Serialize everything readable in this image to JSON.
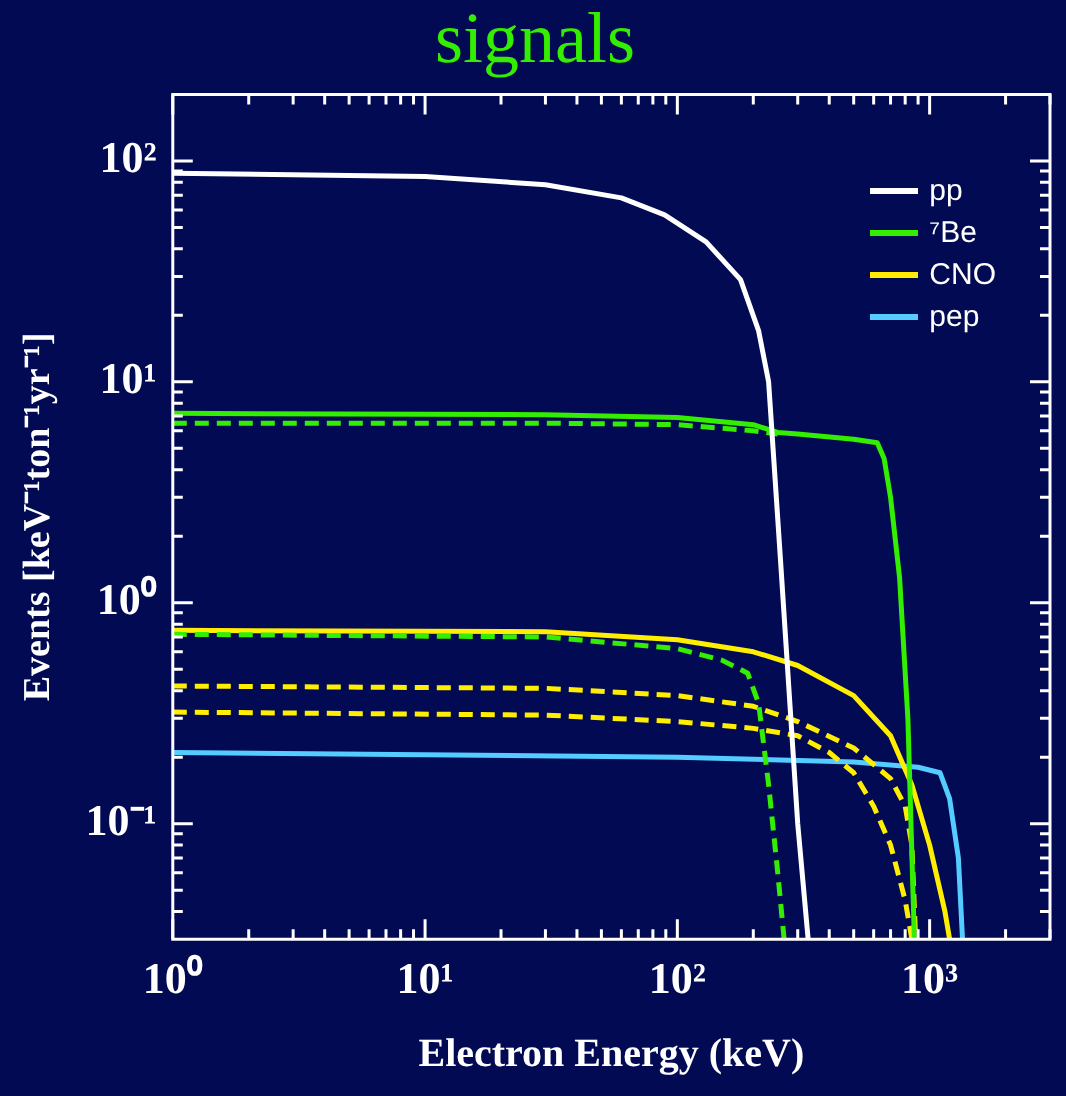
{
  "chart_data": {
    "type": "line",
    "title": "signals",
    "xlabel": "Electron Energy (keV)",
    "ylabel": "Events [keV⁻¹ton⁻¹yr⁻¹]",
    "log": "xy",
    "grid": false,
    "legend": "top right",
    "marker": "none",
    "line_style": "solid",
    "xlim": [
      1,
      3000
    ],
    "ylim": [
      0.03,
      200
    ],
    "xticks": [
      {
        "value": 1,
        "label": "10⁰"
      },
      {
        "value": 2,
        "label": null
      },
      {
        "value": 3,
        "label": null
      },
      {
        "value": 4,
        "label": null
      },
      {
        "value": 5,
        "label": null
      },
      {
        "value": 6,
        "label": null
      },
      {
        "value": 7,
        "label": null
      },
      {
        "value": 8,
        "label": null
      },
      {
        "value": 9,
        "label": null
      },
      {
        "value": 10,
        "label": "10¹"
      },
      {
        "value": 20,
        "label": null
      },
      {
        "value": 30,
        "label": null
      },
      {
        "value": 40,
        "label": null
      },
      {
        "value": 50,
        "label": null
      },
      {
        "value": 60,
        "label": null
      },
      {
        "value": 70,
        "label": null
      },
      {
        "value": 80,
        "label": null
      },
      {
        "value": 90,
        "label": null
      },
      {
        "value": 100,
        "label": "10²"
      },
      {
        "value": 200,
        "label": null
      },
      {
        "value": 300,
        "label": null
      },
      {
        "value": 400,
        "label": null
      },
      {
        "value": 500,
        "label": null
      },
      {
        "value": 600,
        "label": null
      },
      {
        "value": 700,
        "label": null
      },
      {
        "value": 800,
        "label": null
      },
      {
        "value": 900,
        "label": null
      },
      {
        "value": 1000,
        "label": "10³"
      },
      {
        "value": 2000,
        "label": null
      },
      {
        "value": 3000,
        "label": null
      }
    ],
    "yticks": [
      {
        "value": 0.04,
        "label": null
      },
      {
        "value": 0.05,
        "label": null
      },
      {
        "value": 0.06,
        "label": null
      },
      {
        "value": 0.07,
        "label": null
      },
      {
        "value": 0.08,
        "label": null
      },
      {
        "value": 0.09,
        "label": null
      },
      {
        "value": 0.1,
        "label": "10⁻¹"
      },
      {
        "value": 0.2,
        "label": null
      },
      {
        "value": 0.3,
        "label": null
      },
      {
        "value": 0.4,
        "label": null
      },
      {
        "value": 0.5,
        "label": null
      },
      {
        "value": 0.6,
        "label": null
      },
      {
        "value": 0.7,
        "label": null
      },
      {
        "value": 0.8,
        "label": null
      },
      {
        "value": 0.9,
        "label": null
      },
      {
        "value": 1,
        "label": "10⁰"
      },
      {
        "value": 2,
        "label": null
      },
      {
        "value": 3,
        "label": null
      },
      {
        "value": 4,
        "label": null
      },
      {
        "value": 5,
        "label": null
      },
      {
        "value": 6,
        "label": null
      },
      {
        "value": 7,
        "label": null
      },
      {
        "value": 8,
        "label": null
      },
      {
        "value": 9,
        "label": null
      },
      {
        "value": 10,
        "label": "10¹"
      },
      {
        "value": 20,
        "label": null
      },
      {
        "value": 30,
        "label": null
      },
      {
        "value": 40,
        "label": null
      },
      {
        "value": 50,
        "label": null
      },
      {
        "value": 60,
        "label": null
      },
      {
        "value": 70,
        "label": null
      },
      {
        "value": 80,
        "label": null
      },
      {
        "value": 90,
        "label": null
      },
      {
        "value": 100,
        "label": "10²"
      },
      {
        "value": 200,
        "label": null
      }
    ],
    "series": [
      {
        "name": "pp",
        "color": "#ffffff",
        "x": [
          1,
          10,
          30,
          60,
          89,
          130,
          178,
          210,
          230,
          256,
          300,
          330
        ],
        "values": [
          88,
          85,
          78,
          68,
          57,
          43,
          29,
          17,
          10,
          1.6,
          0.1,
          0.03
        ]
      },
      {
        "name": "⁷Be",
        "color": "#33ee00",
        "x": [
          1,
          30,
          100,
          200,
          250,
          300,
          500,
          620,
          660,
          700,
          760,
          820,
          870
        ],
        "values": [
          7.2,
          7.1,
          6.9,
          6.4,
          5.9,
          5.8,
          5.5,
          5.3,
          4.5,
          3,
          1.3,
          0.3,
          0.03
        ]
      },
      {
        "color": "#33ee00",
        "line_style": "dashed",
        "x": [
          1,
          30,
          100,
          200,
          250
        ],
        "values": [
          6.5,
          6.5,
          6.4,
          6.0,
          5.8
        ]
      },
      {
        "color": "#33ee00",
        "line_style": "dashed",
        "x": [
          1,
          30,
          100,
          150,
          190,
          210,
          230,
          250,
          265
        ],
        "values": [
          0.72,
          0.7,
          0.62,
          0.55,
          0.48,
          0.35,
          0.15,
          0.06,
          0.03
        ]
      },
      {
        "name": "CNO",
        "color": "#ffee00",
        "x": [
          1,
          30,
          100,
          200,
          300,
          500,
          700,
          850,
          1000,
          1150,
          1200
        ],
        "values": [
          0.75,
          0.74,
          0.68,
          0.6,
          0.52,
          0.38,
          0.25,
          0.15,
          0.08,
          0.04,
          0.03
        ]
      },
      {
        "color": "#ffee00",
        "line_style": "dashed",
        "x": [
          1,
          30,
          100,
          200,
          300,
          500,
          700,
          800,
          850,
          880
        ],
        "values": [
          0.42,
          0.41,
          0.38,
          0.34,
          0.29,
          0.22,
          0.16,
          0.12,
          0.08,
          0.03
        ]
      },
      {
        "color": "#ffee00",
        "line_style": "dashed",
        "x": [
          1,
          30,
          100,
          200,
          300,
          400,
          500,
          600,
          700,
          800,
          850
        ],
        "values": [
          0.32,
          0.31,
          0.29,
          0.27,
          0.25,
          0.21,
          0.17,
          0.12,
          0.08,
          0.045,
          0.03
        ]
      },
      {
        "name": "pep",
        "color": "#55ccff",
        "x": [
          1,
          100,
          500,
          900,
          1100,
          1200,
          1300,
          1350
        ],
        "values": [
          0.21,
          0.2,
          0.19,
          0.18,
          0.17,
          0.13,
          0.07,
          0.03
        ]
      }
    ]
  }
}
